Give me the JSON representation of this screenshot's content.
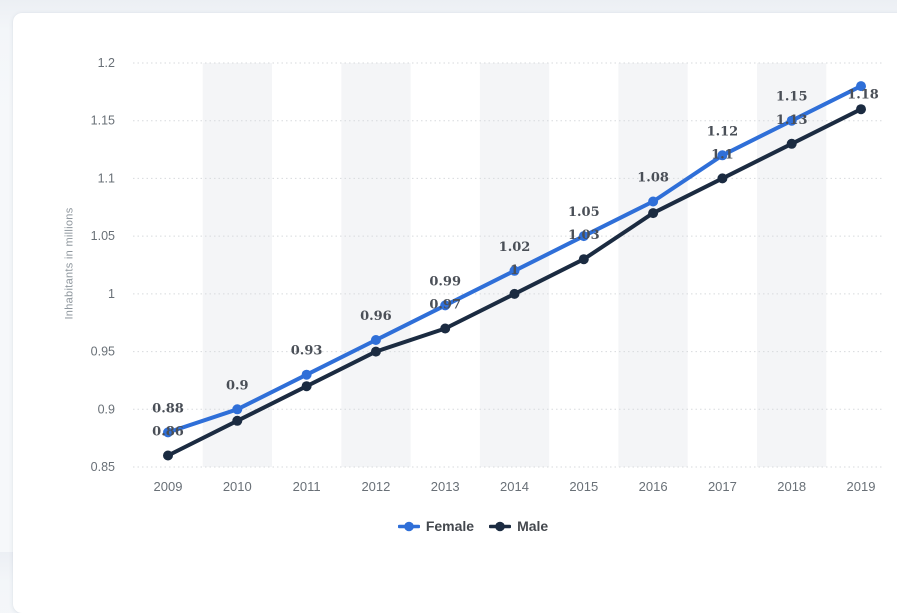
{
  "chart_data": {
    "type": "line",
    "ylabel": "Inhabitants in millions",
    "x": [
      "2009",
      "2010",
      "2011",
      "2012",
      "2013",
      "2014",
      "2015",
      "2016",
      "2017",
      "2018",
      "2019"
    ],
    "series": [
      {
        "name": "Female",
        "color": "#2f6fd8",
        "values": [
          0.88,
          0.9,
          0.93,
          0.96,
          0.99,
          1.02,
          1.05,
          1.08,
          1.12,
          1.15,
          1.18
        ],
        "point_labels": [
          "0.88",
          "0.9",
          "0.93",
          "0.96",
          "0.99",
          "1.02",
          "1.05",
          "1.08",
          "1.12",
          "1.15",
          "1.18"
        ]
      },
      {
        "name": "Male",
        "color": "#1b2b41",
        "values": [
          0.86,
          0.89,
          0.92,
          0.95,
          0.97,
          1.0,
          1.03,
          1.07,
          1.1,
          1.13,
          1.16
        ],
        "point_labels": [
          "0.86",
          null,
          null,
          null,
          "0.97",
          "1",
          "1.03",
          null,
          "1.1",
          "1.13",
          null
        ]
      }
    ],
    "ylim": [
      0.85,
      1.2
    ],
    "yticks": [
      "0.85",
      "0.9",
      "0.95",
      "1",
      "1.05",
      "1.1",
      "1.15",
      "1.2"
    ],
    "grid": "horizontal-dotted",
    "banded_columns": [
      1,
      3,
      5,
      7,
      9
    ],
    "legend_position": "bottom",
    "colors": {
      "band": "#f4f5f7",
      "grid": "#d7dadd",
      "tick_label": "#697077",
      "axis_title": "#8e969d",
      "data_label": "#4a4f57"
    }
  }
}
